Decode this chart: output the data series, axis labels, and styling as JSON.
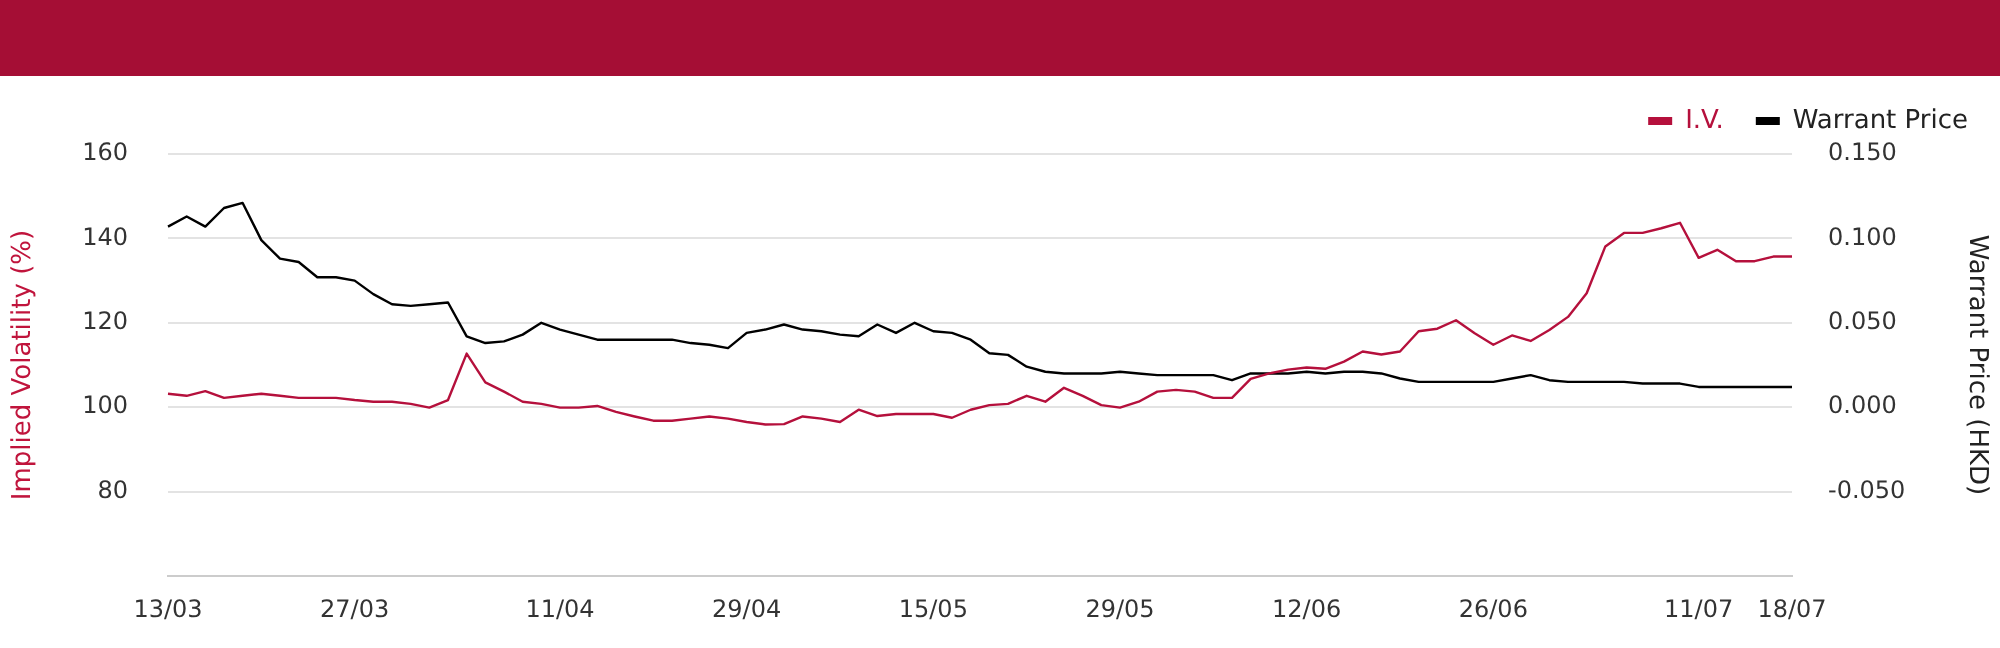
{
  "chart_data": {
    "type": "line",
    "ylabel": "Implied Volatility (%)",
    "y2label": "Warrant Price (HKD)",
    "categories": [
      "13/03",
      null,
      null,
      null,
      null,
      null,
      null,
      null,
      null,
      null,
      "27/03",
      null,
      null,
      null,
      null,
      null,
      null,
      null,
      null,
      null,
      null,
      "11/04",
      null,
      null,
      null,
      null,
      null,
      null,
      null,
      null,
      null,
      "29/04",
      null,
      null,
      null,
      null,
      null,
      null,
      null,
      null,
      null,
      "15/05",
      null,
      null,
      null,
      null,
      null,
      null,
      null,
      null,
      null,
      "29/05",
      null,
      null,
      null,
      null,
      null,
      null,
      null,
      null,
      null,
      "12/06",
      null,
      null,
      null,
      null,
      null,
      null,
      null,
      null,
      null,
      "26/06",
      null,
      null,
      null,
      null,
      null,
      null,
      null,
      null,
      null,
      null,
      "11/07",
      null,
      null,
      null,
      null,
      "18/07"
    ],
    "series": [
      {
        "name": "I.V.",
        "color": "#b5103c",
        "values": [
          103.2,
          102.7,
          103.8,
          102.2,
          102.7,
          103.2,
          102.7,
          102.2,
          102.2,
          102.2,
          101.7,
          101.3,
          101.3,
          100.8,
          99.9,
          101.7,
          112.7,
          105.9,
          103.7,
          101.3,
          100.8,
          99.9,
          99.9,
          100.3,
          98.9,
          97.8,
          96.8,
          96.8,
          97.3,
          97.8,
          97.3,
          96.5,
          95.9,
          96.0,
          97.8,
          97.3,
          96.5,
          99.4,
          97.9,
          98.4,
          98.4,
          98.4,
          97.5,
          99.4,
          100.5,
          100.8,
          102.7,
          101.3,
          104.6,
          102.7,
          100.5,
          99.9,
          101.3,
          103.7,
          104.1,
          103.7,
          102.2,
          102.2,
          106.7,
          108.0,
          108.9,
          109.4,
          109.1,
          110.8,
          113.2,
          112.5,
          113.2,
          118.0,
          118.6,
          120.6,
          117.5,
          114.8,
          117.0,
          115.7,
          118.3,
          121.4,
          127.0,
          138.1,
          141.3,
          141.3,
          142.4,
          143.7,
          135.4,
          137.3,
          134.6,
          134.6,
          135.7,
          135.7
        ]
      },
      {
        "name": "Warrant Price",
        "color": "#000000",
        "axis": "y2",
        "values": [
          0.107,
          0.113,
          0.107,
          0.118,
          0.121,
          0.099,
          0.088,
          0.086,
          0.077,
          0.077,
          0.075,
          0.067,
          0.061,
          0.06,
          0.061,
          0.062,
          0.042,
          0.038,
          0.039,
          0.043,
          0.05,
          0.046,
          0.043,
          0.04,
          0.04,
          0.04,
          0.04,
          0.04,
          0.038,
          0.037,
          0.035,
          0.044,
          0.046,
          0.049,
          0.046,
          0.045,
          0.043,
          0.042,
          0.049,
          0.044,
          0.05,
          0.045,
          0.044,
          0.04,
          0.032,
          0.031,
          0.024,
          0.021,
          0.02,
          0.02,
          0.02,
          0.021,
          0.02,
          0.019,
          0.019,
          0.019,
          0.019,
          0.016,
          0.02,
          0.02,
          0.02,
          0.021,
          0.02,
          0.021,
          0.021,
          0.02,
          0.017,
          0.015,
          0.015,
          0.015,
          0.015,
          0.015,
          0.017,
          0.019,
          0.016,
          0.015,
          0.015,
          0.015,
          0.015,
          0.014,
          0.014,
          0.014,
          0.012,
          0.012,
          0.012,
          0.012,
          0.012,
          0.012
        ]
      }
    ],
    "ylim": [
      60,
      160
    ],
    "yticks": [
      80,
      100,
      120,
      140,
      160
    ],
    "y2lim": [
      -0.1,
      0.15
    ],
    "y2ticks": [
      {
        "value": -0.05,
        "label": "-0.050"
      },
      {
        "value": 0,
        "label": "0.000"
      },
      {
        "value": 0.05,
        "label": "0.050"
      },
      {
        "value": 0.1,
        "label": "0.100"
      },
      {
        "value": 0.15,
        "label": "0.150"
      }
    ],
    "grid": "y",
    "legend": "top right",
    "marker": "none",
    "line_style": "solid"
  }
}
